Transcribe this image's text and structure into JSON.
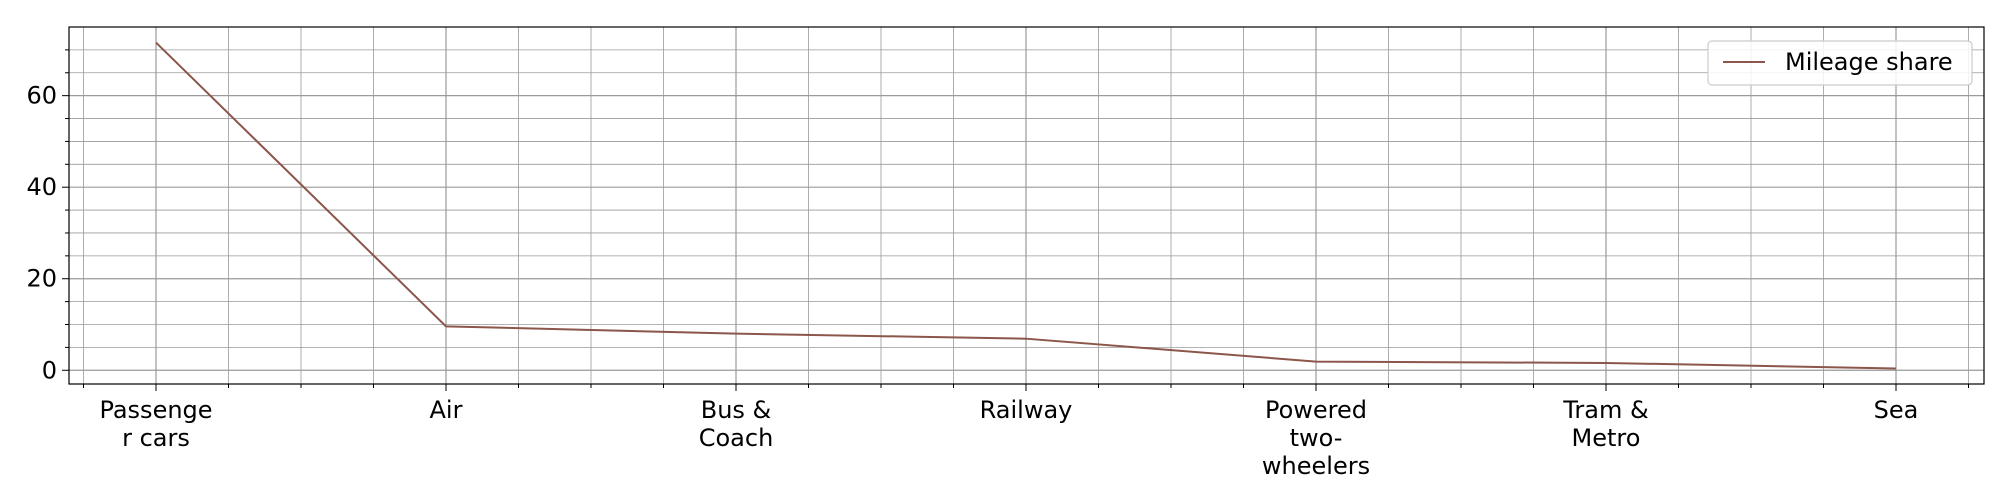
{
  "chart_data": {
    "type": "line",
    "categories": [
      [
        "Passenge",
        "r cars"
      ],
      [
        "Air"
      ],
      [
        "Bus &",
        "Coach"
      ],
      [
        "Railway"
      ],
      [
        "Powered",
        "two-",
        "wheelers"
      ],
      [
        "Tram &",
        "Metro"
      ],
      [
        "Sea"
      ]
    ],
    "series": [
      {
        "name": "Mileage share",
        "values": [
          71.6,
          9.6,
          8.0,
          6.9,
          1.9,
          1.6,
          0.4
        ],
        "color": "#8c564b"
      }
    ],
    "ylim": [
      -3,
      75
    ],
    "yticks": [
      0,
      20,
      40,
      60
    ],
    "y_minor_step": 5,
    "x_minor_per_major": 4,
    "grid": true,
    "legend_position": "top-right",
    "title": "",
    "xlabel": "",
    "ylabel": ""
  }
}
